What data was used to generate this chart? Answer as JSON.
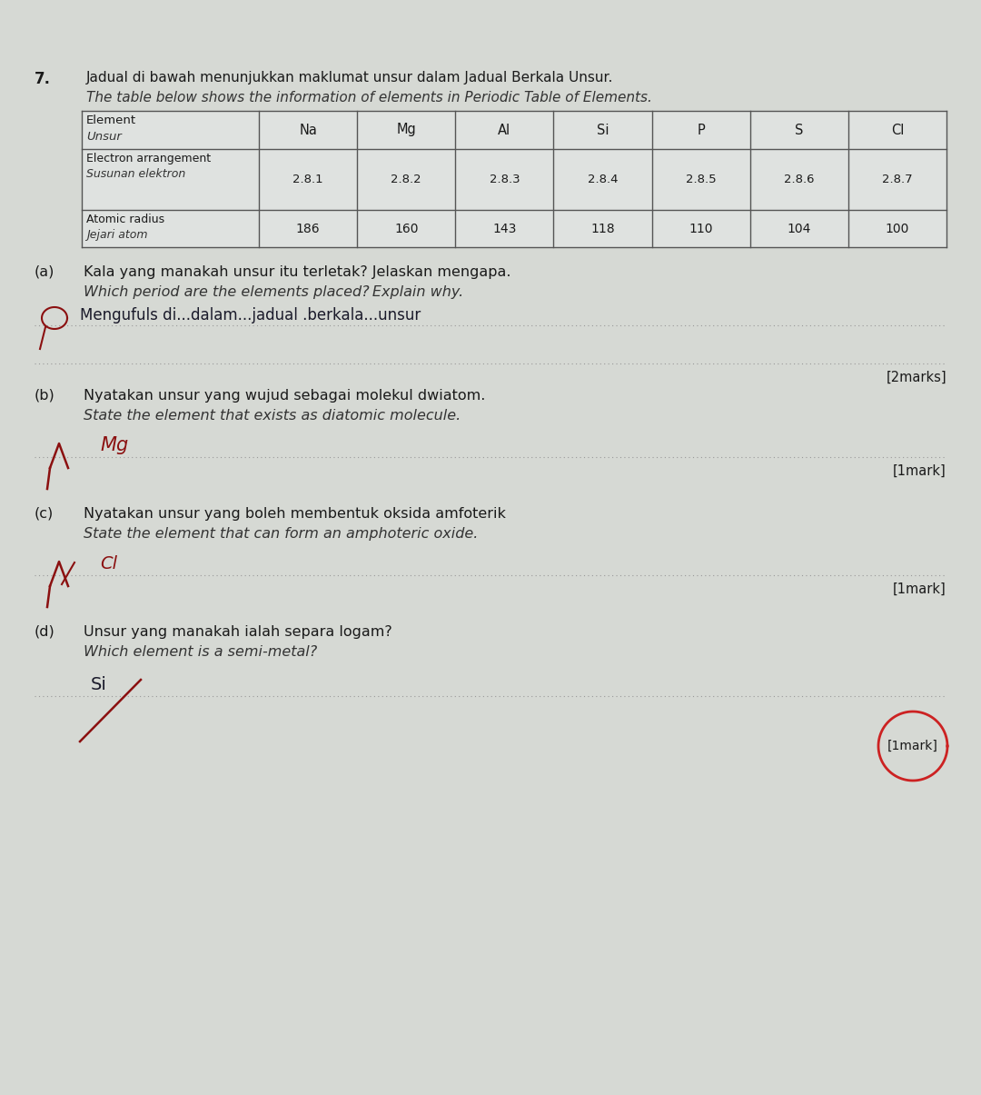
{
  "bg_color": "#d6d9d4",
  "table_bg": "#dfe2e0",
  "question_number": "7.",
  "title_malay": "Jadual di bawah menunjukkan maklumat unsur dalam Jadual Berkala Unsur.",
  "title_english": "The table below shows the information of elements in Periodic Table of Elements.",
  "col_symbols": [
    "Na",
    "Mg",
    "Al",
    "Si",
    "P",
    "S",
    "Cl"
  ],
  "ea_values": [
    "2.8.1",
    "2.8.2",
    "2.8.3",
    "2.8.4",
    "2.8.5",
    "2.8.6",
    "2.8.7"
  ],
  "ar_values": [
    "186",
    "160",
    "143",
    "118",
    "110",
    "104",
    "100"
  ],
  "qa": [
    {
      "letter": "(a)",
      "q_malay": "Kala yang manakah unsur itu terletak? Jelaskan mengapa.",
      "q_english": "Which period are the elements placed? Explain why.",
      "answer": "Mengufuls di...dalam...jadual .berkala...unsur",
      "marks": "[2marks]"
    },
    {
      "letter": "(b)",
      "q_malay": "Nyatakan unsur yang wujud sebagai molekul dwiatom.",
      "q_english": "State the element that exists as diatomic molecule.",
      "answer": "Mg",
      "marks": "[1mark]"
    },
    {
      "letter": "(c)",
      "q_malay": "Nyatakan unsur yang boleh membentuk oksida amfoterik",
      "q_english": "State the element that can form an amphoteric oxide.",
      "answer": "Cl",
      "marks": "[1mark]"
    },
    {
      "letter": "(d)",
      "q_malay": "Unsur yang manakah ialah separa logam?",
      "q_english": "Which element is a semi-metal?",
      "answer": "Si",
      "marks": "[1mark]"
    }
  ],
  "answer_color": "#6B0000",
  "pen_color": "#8B1010",
  "text_color": "#1a1a1a",
  "table_line_color": "#555555",
  "dot_line_color": "#999999"
}
